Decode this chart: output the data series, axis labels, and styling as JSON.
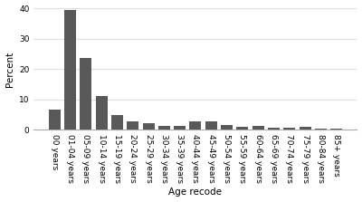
{
  "categories": [
    "00 years",
    "01-04 years",
    "05-09 years",
    "10-14 years",
    "15-19 years",
    "20-24 years",
    "25-29 years",
    "30-34 years",
    "35-39 years",
    "40-44 years",
    "45-49 years",
    "50-54 years",
    "55-59 years",
    "60-64 years",
    "65-69 years",
    "70-74 years",
    "75-79 years",
    "80-84 years",
    "85+ years"
  ],
  "values": [
    6.5,
    39.5,
    23.5,
    11.0,
    4.8,
    2.8,
    2.0,
    1.2,
    1.2,
    2.6,
    2.8,
    1.4,
    0.8,
    1.3,
    0.5,
    0.5,
    0.8,
    0.3,
    0.2
  ],
  "bar_color": "#595959",
  "xlabel": "Age recode",
  "ylabel": "Percent",
  "ylim": [
    0,
    40
  ],
  "yticks": [
    0,
    10,
    20,
    30,
    40
  ],
  "background_color": "#ffffff",
  "grid_color": "#e0e0e0",
  "xlabel_fontsize": 7.5,
  "ylabel_fontsize": 7.5,
  "tick_fontsize": 6.5
}
